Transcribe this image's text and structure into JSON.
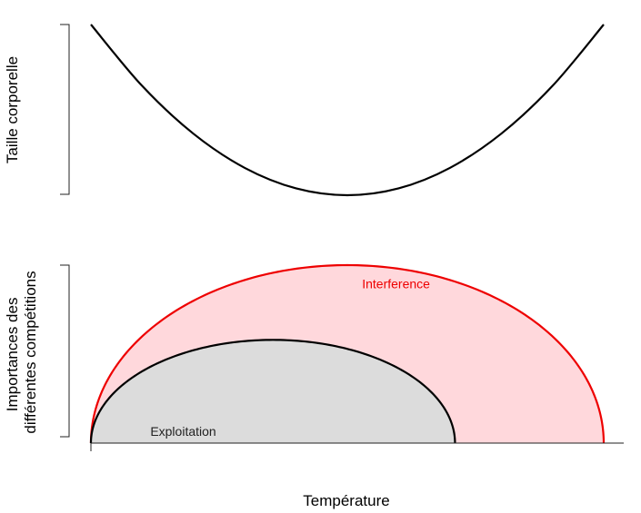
{
  "chart_data": [
    {
      "type": "line",
      "panel": "top",
      "title": "",
      "xlabel": "",
      "ylabel": "Taille corporelle",
      "xlim": [
        0,
        1
      ],
      "ylim": [
        0,
        1
      ],
      "grid": false,
      "series": [
        {
          "name": "Taille corporelle",
          "color": "#000000",
          "x": [
            0.0,
            0.1,
            0.2,
            0.3,
            0.4,
            0.5,
            0.6,
            0.7,
            0.8,
            0.9,
            1.0
          ],
          "y": [
            1.0,
            0.64,
            0.36,
            0.16,
            0.04,
            0.0,
            0.04,
            0.16,
            0.36,
            0.64,
            1.0
          ]
        }
      ]
    },
    {
      "type": "area",
      "panel": "bottom",
      "title": "",
      "xlabel": "Température",
      "ylabel_lines": [
        "Importances des",
        "différentes compétitions"
      ],
      "xlim": [
        0,
        1
      ],
      "ylim": [
        0,
        1
      ],
      "grid": false,
      "series": [
        {
          "name": "Interference",
          "stroke": "#ee0000",
          "fill": "#ffd8dc",
          "center": 0.5,
          "half_width": 0.5,
          "peak": 1.0,
          "label_at": [
            0.595,
            0.87
          ]
        },
        {
          "name": "Exploitation",
          "stroke": "#000000",
          "fill": "#dcdcdc",
          "center": 0.355,
          "half_width": 0.355,
          "peak": 0.58,
          "label_at": [
            0.18,
            0.04
          ]
        }
      ]
    }
  ]
}
